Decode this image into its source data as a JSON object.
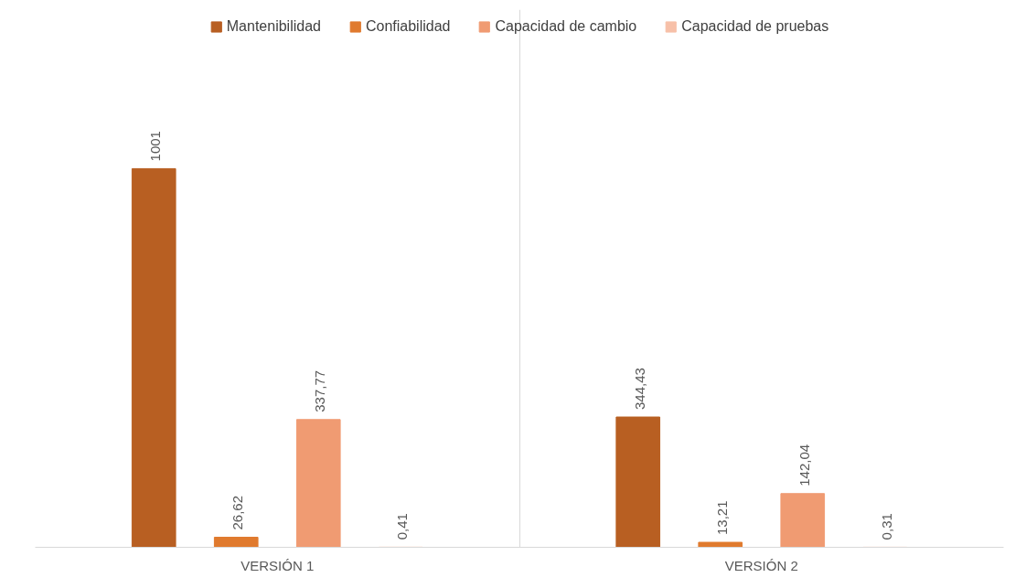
{
  "chart_data": {
    "type": "bar",
    "categories": [
      "VERSIÓN 1",
      "VERSIÓN 2"
    ],
    "series": [
      {
        "name": "Mantenibilidad",
        "color": "#b85f22",
        "values": [
          1001,
          344.43
        ],
        "value_labels": [
          "1001",
          "344,43"
        ]
      },
      {
        "name": "Confiabilidad",
        "color": "#e07a2e",
        "values": [
          26.62,
          13.21
        ],
        "value_labels": [
          "26,62",
          "13,21"
        ]
      },
      {
        "name": "Capacidad de cambio",
        "color": "#f09b72",
        "values": [
          337.77,
          142.04
        ],
        "value_labels": [
          "337,77",
          "142,04"
        ]
      },
      {
        "name": "Capacidad de pruebas",
        "color": "#f7c0a8",
        "values": [
          0.41,
          0.31
        ],
        "value_labels": [
          "0,41",
          "0,31"
        ]
      }
    ],
    "legend": "top",
    "grid": "x"
  }
}
